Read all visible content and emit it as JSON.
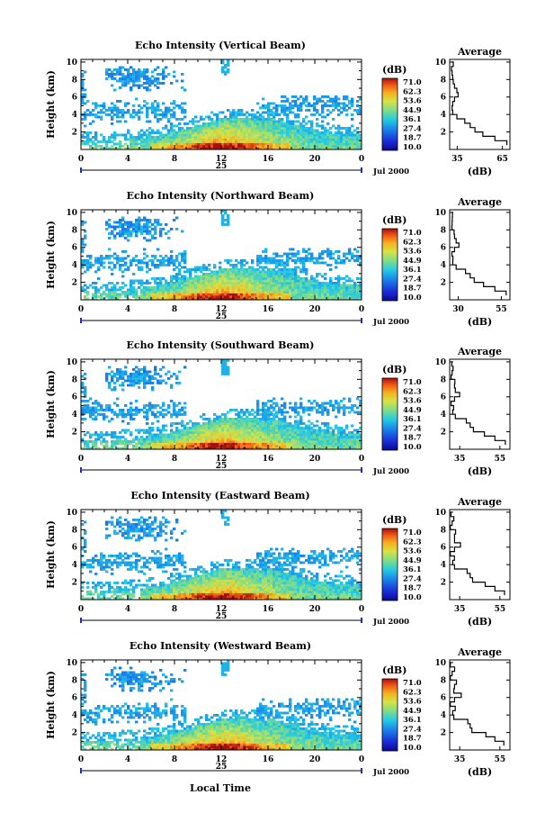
{
  "chart_data": {
    "type": "heatmap",
    "title_common": "Echo Intensity",
    "panels": [
      {
        "title": "Echo Intensity (Vertical Beam)",
        "profile_x_ticks": [
          "35",
          "65"
        ],
        "profile_range": [
          30,
          70
        ]
      },
      {
        "title": "Echo Intensity (Northward Beam)",
        "profile_x_ticks": [
          "30",
          "55"
        ],
        "profile_range": [
          25,
          60
        ]
      },
      {
        "title": "Echo Intensity (Southward Beam)",
        "profile_x_ticks": [
          "35",
          "55"
        ],
        "profile_range": [
          30,
          60
        ]
      },
      {
        "title": "Echo Intensity (Eastward Beam)",
        "profile_x_ticks": [
          "35",
          "55"
        ],
        "profile_range": [
          30,
          60
        ]
      },
      {
        "title": "Echo Intensity (Westward Beam)",
        "profile_x_ticks": [
          "35",
          "55"
        ],
        "profile_range": [
          30,
          60
        ]
      }
    ],
    "ylabel": "Height (km)",
    "y_ticks": [
      "2",
      "4",
      "6",
      "8",
      "10"
    ],
    "ylim": [
      0,
      10.3
    ],
    "x_ticks": [
      "0",
      "4",
      "8",
      "12",
      "16",
      "20",
      "0"
    ],
    "xlim_hours": [
      0,
      24
    ],
    "date_day": "25",
    "date_label": "Jul 2000",
    "xlabel": "Local Time",
    "colorbar": {
      "unit": "(dB)",
      "levels": [
        "71.0",
        "62.3",
        "53.6",
        "44.9",
        "36.1",
        "27.4",
        "18.7",
        "10.0"
      ],
      "range": [
        10.0,
        71.0
      ],
      "colormap": "jet"
    },
    "profile_title": "Average",
    "profile_unit": "(dB)",
    "avg_profile_shape": [
      [
        0.5,
        0.95
      ],
      [
        1.0,
        0.75
      ],
      [
        1.5,
        0.55
      ],
      [
        2.0,
        0.42
      ],
      [
        2.5,
        0.34
      ],
      [
        3.0,
        0.25
      ],
      [
        3.5,
        0.12
      ],
      [
        4.0,
        0.05
      ],
      [
        4.5,
        0.04
      ],
      [
        5.0,
        0.05
      ],
      [
        5.5,
        0.08
      ],
      [
        6.0,
        0.14
      ],
      [
        6.5,
        0.12
      ],
      [
        7.0,
        0.08
      ],
      [
        7.5,
        0.06
      ],
      [
        8.0,
        0.05
      ],
      [
        8.5,
        0.04
      ],
      [
        9.0,
        0.03
      ],
      [
        9.5,
        0.06
      ],
      [
        10.0,
        0.03
      ]
    ]
  }
}
